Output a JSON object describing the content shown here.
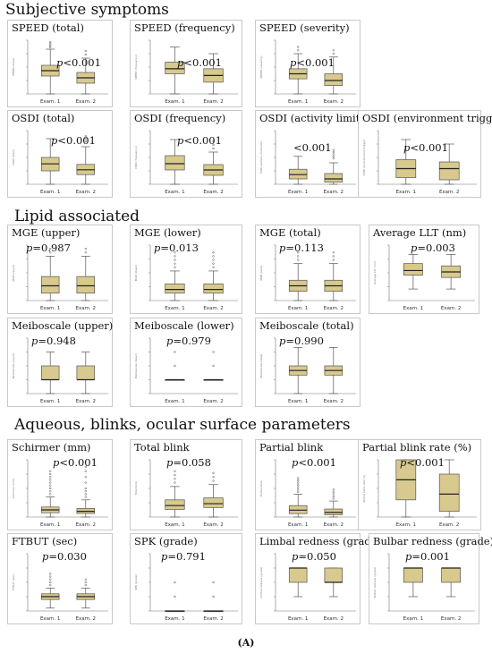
{
  "sections": [
    {
      "title": "Subjective symptoms"
    },
    {
      "title": "Lipid associated"
    },
    {
      "title": "Aqueous, blinks, ocular surface parameters"
    }
  ],
  "footer": "(A)",
  "colors": {
    "box_fill": "#d8c98e",
    "box_stroke": "#555555",
    "median": "#222222",
    "outlier": "#555555"
  },
  "chart_data": [
    {
      "type": "box",
      "title": "SPEED (total)",
      "p_label": "p",
      "p_value": "<0.001",
      "ylabel": "SPEED (total)",
      "categories": [
        "Exam. 1",
        "Exam. 2"
      ],
      "ylim": [
        0,
        30
      ],
      "boxes": [
        {
          "min": 0,
          "q1": 10,
          "median": 13,
          "q3": 16,
          "max": 25,
          "outliers": [
            26,
            27,
            28,
            29
          ]
        },
        {
          "min": 0,
          "q1": 6,
          "median": 9,
          "q3": 12,
          "max": 20,
          "outliers": [
            22,
            24
          ]
        }
      ]
    },
    {
      "type": "box",
      "title": "SPEED (frequency)",
      "p_label": "p",
      "p_value": "<0.001",
      "ylabel": "SPEED (frequency)",
      "categories": [
        "Exam. 1",
        "Exam. 2"
      ],
      "ylim": [
        0,
        16
      ],
      "boxes": [
        {
          "min": 0,
          "q1": 6,
          "median": 7.5,
          "q3": 9.5,
          "max": 14,
          "outliers": []
        },
        {
          "min": 0,
          "q1": 3.5,
          "median": 5.5,
          "q3": 7.5,
          "max": 12,
          "outliers": []
        }
      ]
    },
    {
      "type": "box",
      "title": "SPEED (severity)",
      "p_label": "p",
      "p_value": "<0.001",
      "ylabel": "SPEED (severity)",
      "categories": [
        "Exam. 1",
        "Exam. 2"
      ],
      "ylim": [
        0,
        16
      ],
      "boxes": [
        {
          "min": 0,
          "q1": 4.5,
          "median": 6,
          "q3": 7.5,
          "max": 12,
          "outliers": [
            13,
            14
          ]
        },
        {
          "min": 0,
          "q1": 2.5,
          "median": 4,
          "q3": 6,
          "max": 11,
          "outliers": [
            12,
            13
          ]
        }
      ]
    },
    {
      "type": "box",
      "title": "OSDI (total)",
      "p_label": "p",
      "p_value": "<0.001",
      "ylabel": "OSDI (total)",
      "categories": [
        "Exam. 1",
        "Exam. 2"
      ],
      "ylim": [
        0,
        100
      ],
      "boxes": [
        {
          "min": 0,
          "q1": 25,
          "median": 38,
          "q3": 50,
          "max": 85,
          "outliers": []
        },
        {
          "min": 0,
          "q1": 18,
          "median": 27,
          "q3": 37,
          "max": 70,
          "outliers": [
            80,
            85,
            90
          ]
        }
      ]
    },
    {
      "type": "box",
      "title": "OSDI (frequency)",
      "p_label": "p",
      "p_value": "<0.001",
      "ylabel": "OSDI (frequency)",
      "categories": [
        "Exam. 1",
        "Exam. 2"
      ],
      "ylim": [
        0,
        60
      ],
      "boxes": [
        {
          "min": 0,
          "q1": 16,
          "median": 23,
          "q3": 32,
          "max": 50,
          "outliers": []
        },
        {
          "min": 0,
          "q1": 10,
          "median": 16,
          "q3": 22,
          "max": 36,
          "outliers": [
            40,
            44,
            48
          ]
        }
      ]
    },
    {
      "type": "box",
      "title": "OSDI (activity limitation)",
      "p_label": "",
      "p_value": "<0.001",
      "ylabel": "OSDI (activity limitation)",
      "categories": [
        "Exam. 1",
        "Exam. 2"
      ],
      "ylim": [
        0,
        25
      ],
      "boxes": [
        {
          "min": 0,
          "q1": 2.5,
          "median": 4.5,
          "q3": 7,
          "max": 13,
          "outliers": []
        },
        {
          "min": 0,
          "q1": 1,
          "median": 2.5,
          "q3": 5,
          "max": 10,
          "outliers": [
            12,
            13,
            14,
            15,
            16
          ]
        }
      ]
    },
    {
      "type": "box",
      "title": "OSDI (environment trigger)",
      "p_label": "p",
      "p_value": "<0.001",
      "ylabel": "OSDI (environment trigger)",
      "categories": [
        "Exam. 1",
        "Exam. 2"
      ],
      "ylim": [
        0,
        12
      ],
      "boxes": [
        {
          "min": 0,
          "q1": 1.5,
          "median": 3.5,
          "q3": 5.5,
          "max": 10,
          "outliers": []
        },
        {
          "min": 0,
          "q1": 1,
          "median": 3.5,
          "q3": 5,
          "max": 9,
          "outliers": []
        }
      ]
    },
    {
      "type": "box",
      "title": "MGE (upper)",
      "p_label": "p",
      "p_value": "=0.987",
      "ylabel": "MGE (upper)",
      "categories": [
        "Exam. 1",
        "Exam. 2"
      ],
      "ylim": [
        0,
        15
      ],
      "boxes": [
        {
          "min": 0,
          "q1": 2,
          "median": 4,
          "q3": 6.5,
          "max": 12,
          "outliers": [
            13,
            14
          ]
        },
        {
          "min": 0,
          "q1": 2,
          "median": 4,
          "q3": 6.5,
          "max": 12,
          "outliers": [
            13,
            14
          ]
        }
      ]
    },
    {
      "type": "box",
      "title": "MGE (lower)",
      "p_label": "p",
      "p_value": "=0.013",
      "ylabel": "MGE (lower)",
      "categories": [
        "Exam. 1",
        "Exam. 2"
      ],
      "ylim": [
        0,
        15
      ],
      "boxes": [
        {
          "min": 0,
          "q1": 2,
          "median": 3,
          "q3": 4.5,
          "max": 8,
          "outliers": [
            9,
            10,
            11,
            12,
            13
          ]
        },
        {
          "min": 0,
          "q1": 2,
          "median": 3,
          "q3": 4.5,
          "max": 8,
          "outliers": [
            9,
            10,
            11,
            12,
            13
          ]
        }
      ]
    },
    {
      "type": "box",
      "title": "MGE (total)",
      "p_label": "p",
      "p_value": "=0.113",
      "ylabel": "MGE (total)",
      "categories": [
        "Exam. 1",
        "Exam. 2"
      ],
      "ylim": [
        0,
        30
      ],
      "boxes": [
        {
          "min": 0,
          "q1": 5,
          "median": 8,
          "q3": 11,
          "max": 20,
          "outliers": [
            22,
            24,
            26
          ]
        },
        {
          "min": 0,
          "q1": 5,
          "median": 8,
          "q3": 11,
          "max": 20,
          "outliers": [
            22,
            24,
            26
          ]
        }
      ]
    },
    {
      "type": "box",
      "title": "Average LLT (nm)",
      "p_label": "p",
      "p_value": "=0.003",
      "ylabel": "Average LLT (nm)",
      "categories": [
        "Exam. 1",
        "Exam. 2"
      ],
      "ylim": [
        0,
        120
      ],
      "boxes": [
        {
          "min": 25,
          "q1": 55,
          "median": 65,
          "q3": 80,
          "max": 100,
          "outliers": []
        },
        {
          "min": 25,
          "q1": 50,
          "median": 62,
          "q3": 75,
          "max": 100,
          "outliers": []
        }
      ]
    },
    {
      "type": "box",
      "title": "Meiboscale (upper)",
      "p_label": "p",
      "p_value": "=0.948",
      "ylabel": "Meiboscale (upper)",
      "categories": [
        "Exam. 1",
        "Exam. 2"
      ],
      "ylim": [
        0,
        4
      ],
      "boxes": [
        {
          "min": 0,
          "q1": 1,
          "median": 1,
          "q3": 2,
          "max": 3,
          "outliers": []
        },
        {
          "min": 0,
          "q1": 1,
          "median": 1,
          "q3": 2,
          "max": 3,
          "outliers": []
        }
      ]
    },
    {
      "type": "box",
      "title": "Meiboscale (lower)",
      "p_label": "p",
      "p_value": "=0.979",
      "ylabel": "Meiboscale (lower)",
      "categories": [
        "Exam. 1",
        "Exam. 2"
      ],
      "ylim": [
        0,
        4
      ],
      "boxes": [
        {
          "min": 1,
          "q1": 1,
          "median": 1,
          "q3": 1,
          "max": 1,
          "outliers": [
            2,
            3
          ]
        },
        {
          "min": 1,
          "q1": 1,
          "median": 1,
          "q3": 1,
          "max": 1,
          "outliers": [
            2,
            3
          ]
        }
      ]
    },
    {
      "type": "box",
      "title": "Meiboscale (total)",
      "p_label": "p",
      "p_value": "=0.990",
      "ylabel": "Meiboscale (total)",
      "categories": [
        "Exam. 1",
        "Exam. 2"
      ],
      "ylim": [
        0,
        6
      ],
      "boxes": [
        {
          "min": 0,
          "q1": 2,
          "median": 2.5,
          "q3": 3,
          "max": 5,
          "outliers": []
        },
        {
          "min": 0,
          "q1": 2,
          "median": 2.5,
          "q3": 3,
          "max": 5,
          "outliers": []
        }
      ]
    },
    {
      "type": "box",
      "title": "Schirmer (mm)",
      "p_label": "p",
      "p_value": "<0.001",
      "ylabel": "Schirmer (mm)",
      "categories": [
        "Exam. 1",
        "Exam. 2"
      ],
      "ylim": [
        0,
        40
      ],
      "boxes": [
        {
          "min": 0,
          "q1": 3,
          "median": 5,
          "q3": 7,
          "max": 14,
          "outliers": [
            16,
            18,
            20,
            22,
            24,
            26,
            28,
            30,
            32
          ]
        },
        {
          "min": 0,
          "q1": 2.5,
          "median": 4,
          "q3": 6,
          "max": 12,
          "outliers": [
            14,
            16,
            18,
            20,
            24,
            28,
            32,
            35
          ]
        }
      ]
    },
    {
      "type": "box",
      "title": "Total blink",
      "p_label": "p",
      "p_value": "=0.058",
      "ylabel": "Total blink",
      "categories": [
        "Exam. 1",
        "Exam. 2"
      ],
      "ylim": [
        0,
        30
      ],
      "boxes": [
        {
          "min": 0,
          "q1": 4,
          "median": 6,
          "q3": 9,
          "max": 16,
          "outliers": [
            18,
            20,
            22,
            24
          ]
        },
        {
          "min": 0,
          "q1": 5,
          "median": 7,
          "q3": 10,
          "max": 17,
          "outliers": [
            19,
            21,
            23
          ]
        }
      ]
    },
    {
      "type": "box",
      "title": "Partial blink",
      "p_label": "p",
      "p_value": "<0.001",
      "ylabel": "Partial blink",
      "categories": [
        "Exam. 1",
        "Exam. 2"
      ],
      "ylim": [
        0,
        25
      ],
      "boxes": [
        {
          "min": 0,
          "q1": 1.5,
          "median": 3,
          "q3": 5,
          "max": 10,
          "outliers": [
            11,
            12,
            13,
            14,
            15,
            16,
            17
          ]
        },
        {
          "min": 0,
          "q1": 1,
          "median": 2,
          "q3": 3.5,
          "max": 7,
          "outliers": [
            8,
            9,
            10,
            11,
            12
          ]
        }
      ]
    },
    {
      "type": "box",
      "title": "Partial blink rate (%)",
      "p_label": "p",
      "p_value": "<0.001",
      "ylabel": "Partial blink rate (%)",
      "categories": [
        "Exam. 1",
        "Exam. 2"
      ],
      "ylim": [
        0,
        100
      ],
      "boxes": [
        {
          "min": 0,
          "q1": 30,
          "median": 65,
          "q3": 100,
          "max": 100,
          "outliers": []
        },
        {
          "min": 0,
          "q1": 10,
          "median": 40,
          "q3": 75,
          "max": 100,
          "outliers": []
        }
      ]
    },
    {
      "type": "box",
      "title": "FTBUT (sec)",
      "p_label": "p",
      "p_value": "=0.030",
      "ylabel": "FTBUT (sec)",
      "categories": [
        "Exam. 1",
        "Exam. 2"
      ],
      "ylim": [
        0,
        20
      ],
      "boxes": [
        {
          "min": 1,
          "q1": 4,
          "median": 5,
          "q3": 6,
          "max": 8,
          "outliers": [
            9,
            10,
            11,
            12,
            13
          ]
        },
        {
          "min": 1,
          "q1": 4,
          "median": 5,
          "q3": 6,
          "max": 8,
          "outliers": [
            9,
            10,
            11
          ]
        }
      ]
    },
    {
      "type": "box",
      "title": "SPK (grade)",
      "p_label": "p",
      "p_value": "=0.791",
      "ylabel": "SPK (grade)",
      "categories": [
        "Exam. 1",
        "Exam. 2"
      ],
      "ylim": [
        0,
        4
      ],
      "boxes": [
        {
          "min": 0,
          "q1": 0,
          "median": 0,
          "q3": 0,
          "max": 0,
          "outliers": [
            1,
            2
          ]
        },
        {
          "min": 0,
          "q1": 0,
          "median": 0,
          "q3": 0,
          "max": 0,
          "outliers": [
            1,
            2
          ]
        }
      ]
    },
    {
      "type": "box",
      "title": "Limbal redness (grade)",
      "p_label": "p",
      "p_value": "=0.050",
      "ylabel": "Limbal redness (grade)",
      "categories": [
        "Exam. 1",
        "Exam. 2"
      ],
      "ylim": [
        0,
        4
      ],
      "boxes": [
        {
          "min": 1,
          "q1": 2,
          "median": 3,
          "q3": 3,
          "max": 3,
          "outliers": []
        },
        {
          "min": 1,
          "q1": 2,
          "median": 2,
          "q3": 3,
          "max": 3,
          "outliers": []
        }
      ]
    },
    {
      "type": "box",
      "title": "Bulbar redness (grade)",
      "p_label": "p",
      "p_value": "=0.001",
      "ylabel": "Bulbar redness (grade)",
      "categories": [
        "Exam. 1",
        "Exam. 2"
      ],
      "ylim": [
        0,
        4
      ],
      "boxes": [
        {
          "min": 1,
          "q1": 2,
          "median": 3,
          "q3": 3,
          "max": 3,
          "outliers": []
        },
        {
          "min": 1,
          "q1": 2,
          "median": 3,
          "q3": 3,
          "max": 3,
          "outliers": []
        }
      ]
    }
  ]
}
